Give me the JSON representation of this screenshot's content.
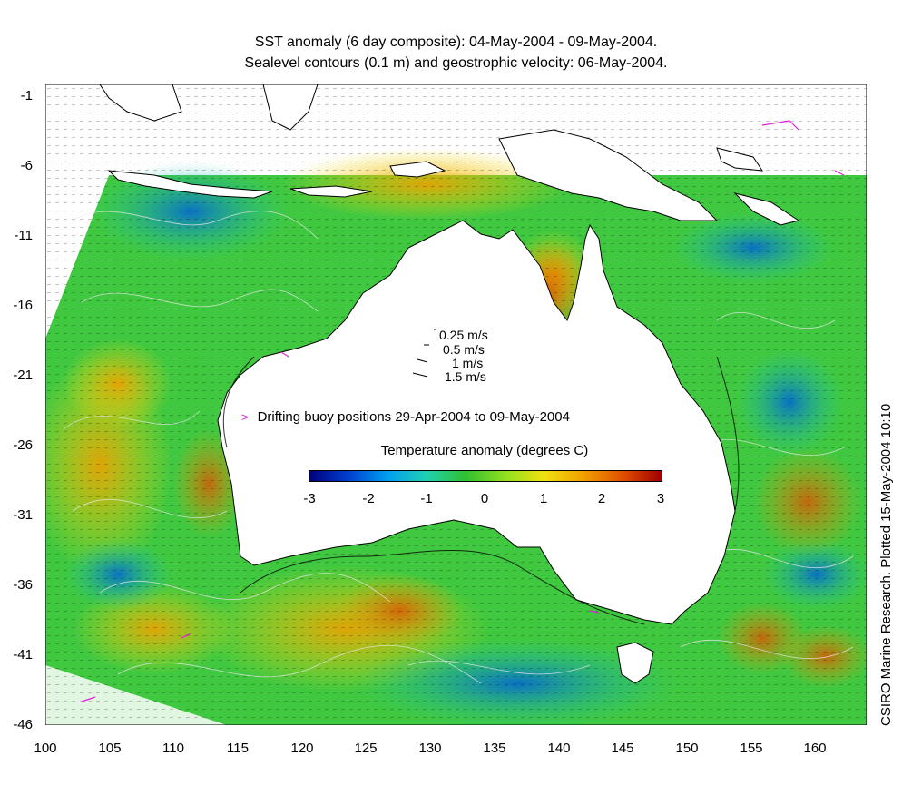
{
  "title": {
    "line1": "SST anomaly (6 day composite): 04-May-2004 - 09-May-2004.",
    "line2": "Sealevel contours (0.1 m) and geostrophic velocity: 06-May-2004."
  },
  "credit": "CSIRO Marine Research. Plotted 15-May-2004 10:10",
  "map": {
    "lon_range": [
      100,
      164
    ],
    "lat_range": [
      -46,
      0
    ],
    "x_ticks": [
      "100",
      "105",
      "110",
      "115",
      "120",
      "125",
      "130",
      "135",
      "140",
      "145",
      "150",
      "155",
      "160"
    ],
    "y_ticks": [
      "-1",
      "-6",
      "-11",
      "-16",
      "-21",
      "-26",
      "-31",
      "-36",
      "-41",
      "-46"
    ]
  },
  "velocity_legend": {
    "entries": [
      "0.25 m/s",
      "0.5 m/s",
      "1 m/s",
      "1.5 m/s"
    ]
  },
  "buoy_legend": {
    "label": "Drifting buoy positions 29-Apr-2004 to 09-May-2004",
    "color": "#e020e0"
  },
  "colorbar": {
    "title": "Temperature anomaly (degrees C)",
    "ticks": [
      "-3",
      "-2",
      "-1",
      "0",
      "1",
      "2",
      "3"
    ],
    "range": [
      -3,
      3
    ],
    "colors": [
      "#00007a",
      "#0040d0",
      "#00a0f0",
      "#20d0b0",
      "#30c030",
      "#90e020",
      "#f0e010",
      "#f0a000",
      "#e05000",
      "#a00000"
    ]
  },
  "colors": {
    "land": "#ffffff",
    "coast": "#000000",
    "contour": "#e0e0e0"
  }
}
